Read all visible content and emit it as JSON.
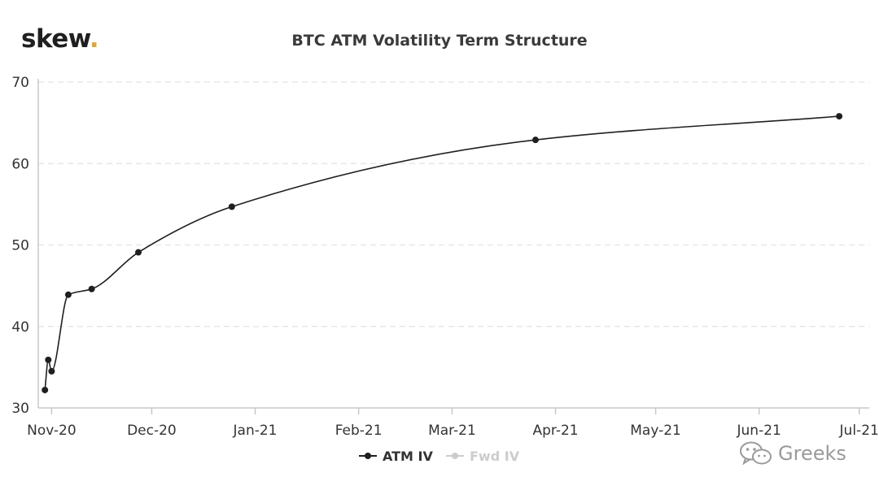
{
  "logo": {
    "text": "skew",
    "dot": "."
  },
  "watermark": {
    "text": "Greeks",
    "icon": "wechat-icon"
  },
  "colors": {
    "series": "#1f1f1f",
    "grid": "#e3e3e3",
    "axis": "#c8c8c8",
    "faded": "#cccccc",
    "logo_dot": "#d9a640"
  },
  "chart_data": {
    "type": "line",
    "title": "BTC ATM Volatility Term Structure",
    "xlabel": "",
    "ylabel": "",
    "ylim": [
      30,
      70
    ],
    "xlim": [
      "2020-10-28",
      "2021-07-04"
    ],
    "yticks": [
      30,
      40,
      50,
      60,
      70
    ],
    "xticks": [
      {
        "date": "2020-11-01",
        "label": "Nov-20"
      },
      {
        "date": "2020-12-01",
        "label": "Dec-20"
      },
      {
        "date": "2021-01-01",
        "label": "Jan-21"
      },
      {
        "date": "2021-02-01",
        "label": "Feb-21"
      },
      {
        "date": "2021-03-01",
        "label": "Mar-21"
      },
      {
        "date": "2021-04-01",
        "label": "Apr-21"
      },
      {
        "date": "2021-05-01",
        "label": "May-21"
      },
      {
        "date": "2021-06-01",
        "label": "Jun-21"
      },
      {
        "date": "2021-07-01",
        "label": "Jul-21"
      }
    ],
    "grid": true,
    "legend": "bottom-center",
    "series": [
      {
        "name": "ATM IV",
        "visible": true,
        "points": [
          {
            "x": "2020-10-30",
            "y": 32.2
          },
          {
            "x": "2020-10-31",
            "y": 35.9
          },
          {
            "x": "2020-11-01",
            "y": 34.5
          },
          {
            "x": "2020-11-06",
            "y": 43.9
          },
          {
            "x": "2020-11-13",
            "y": 44.6
          },
          {
            "x": "2020-11-27",
            "y": 49.1
          },
          {
            "x": "2020-12-25",
            "y": 54.7
          },
          {
            "x": "2021-03-26",
            "y": 62.9
          },
          {
            "x": "2021-06-25",
            "y": 65.8
          }
        ]
      },
      {
        "name": "Fwd IV",
        "visible": false,
        "points": []
      }
    ]
  }
}
